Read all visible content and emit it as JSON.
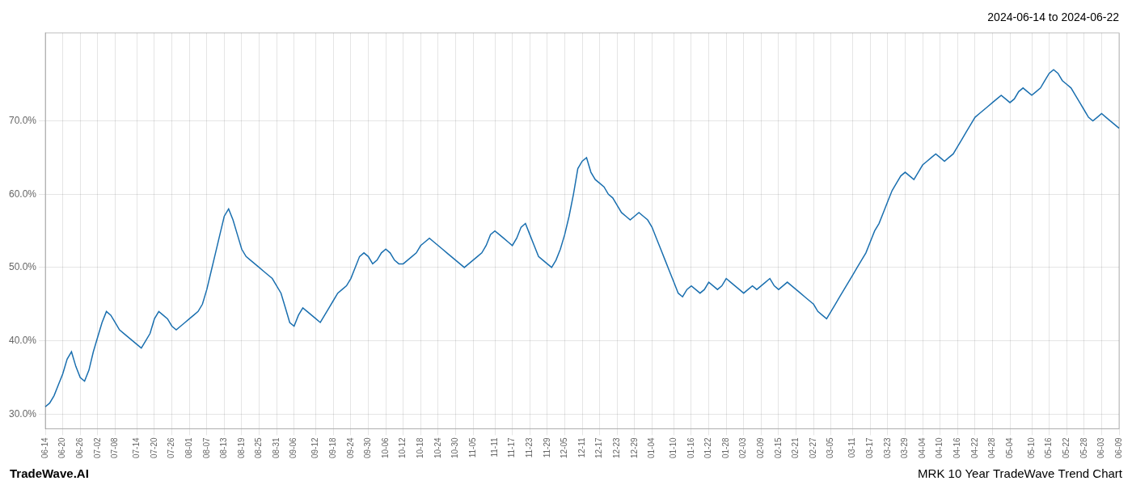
{
  "chart_data": {
    "type": "line",
    "title": "2024-06-14 to 2024-06-22",
    "annotations": [
      "TradeWave.AI",
      "MRK 10 Year TradeWave Trend Chart"
    ],
    "categories": [
      "06-14",
      null,
      null,
      null,
      "06-20",
      null,
      null,
      null,
      "06-26",
      null,
      null,
      null,
      "07-02",
      null,
      null,
      null,
      "07-08",
      null,
      null,
      null,
      null,
      "07-14",
      null,
      null,
      null,
      "07-20",
      null,
      null,
      null,
      "07-26",
      null,
      null,
      null,
      "08-01",
      null,
      null,
      null,
      "08-07",
      null,
      null,
      null,
      "08-13",
      null,
      null,
      null,
      "08-19",
      null,
      null,
      null,
      "08-25",
      null,
      null,
      null,
      "08-31",
      null,
      null,
      null,
      "09-06",
      null,
      null,
      null,
      null,
      "09-12",
      null,
      null,
      null,
      "09-18",
      null,
      null,
      null,
      "09-24",
      null,
      null,
      null,
      "09-30",
      null,
      null,
      null,
      "10-06",
      null,
      null,
      null,
      "10-12",
      null,
      null,
      null,
      "10-18",
      null,
      null,
      null,
      "10-24",
      null,
      null,
      null,
      "10-30",
      null,
      null,
      null,
      "11-05",
      null,
      null,
      null,
      null,
      "11-11",
      null,
      null,
      null,
      "11-17",
      null,
      null,
      null,
      "11-23",
      null,
      null,
      null,
      "11-29",
      null,
      null,
      null,
      "12-05",
      null,
      null,
      null,
      "12-11",
      null,
      null,
      null,
      "12-17",
      null,
      null,
      null,
      "12-23",
      null,
      null,
      null,
      "12-29",
      null,
      null,
      null,
      "01-04",
      null,
      null,
      null,
      null,
      "01-10",
      null,
      null,
      null,
      "01-16",
      null,
      null,
      null,
      "01-22",
      null,
      null,
      null,
      "01-28",
      null,
      null,
      null,
      "02-03",
      null,
      null,
      null,
      "02-09",
      null,
      null,
      null,
      "02-15",
      null,
      null,
      null,
      "02-21",
      null,
      null,
      null,
      "02-27",
      null,
      null,
      null,
      "03-05",
      null,
      null,
      null,
      null,
      "03-11",
      null,
      null,
      null,
      "03-17",
      null,
      null,
      null,
      "03-23",
      null,
      null,
      null,
      "03-29",
      null,
      null,
      null,
      "04-04",
      null,
      null,
      null,
      "04-10",
      null,
      null,
      null,
      "04-16",
      null,
      null,
      null,
      "04-22",
      null,
      null,
      null,
      "04-28",
      null,
      null,
      null,
      "05-04",
      null,
      null,
      null,
      null,
      "05-10",
      null,
      null,
      null,
      "05-16",
      null,
      null,
      null,
      "05-22",
      null,
      null,
      null,
      "05-28",
      null,
      null,
      null,
      "06-03",
      null,
      null,
      null,
      "06-09"
    ],
    "values": [
      31.0,
      31.5,
      32.5,
      34.0,
      35.5,
      37.5,
      38.5,
      36.5,
      35.0,
      34.5,
      36.0,
      38.5,
      40.5,
      42.5,
      44.0,
      43.5,
      42.5,
      41.5,
      41.0,
      40.5,
      40.0,
      39.5,
      39.0,
      40.0,
      41.0,
      43.0,
      44.0,
      43.5,
      43.0,
      42.0,
      41.5,
      42.0,
      42.5,
      43.0,
      43.5,
      44.0,
      45.0,
      47.0,
      49.5,
      52.0,
      54.5,
      57.0,
      58.0,
      56.5,
      54.5,
      52.5,
      51.5,
      51.0,
      50.5,
      50.0,
      49.5,
      49.0,
      48.5,
      47.5,
      46.5,
      44.5,
      42.5,
      42.0,
      43.5,
      44.5,
      44.0,
      43.5,
      43.0,
      42.5,
      43.5,
      44.5,
      45.5,
      46.5,
      47.0,
      47.5,
      48.5,
      50.0,
      51.5,
      52.0,
      51.5,
      50.5,
      51.0,
      52.0,
      52.5,
      52.0,
      51.0,
      50.5,
      50.5,
      51.0,
      51.5,
      52.0,
      53.0,
      53.5,
      54.0,
      53.5,
      53.0,
      52.5,
      52.0,
      51.5,
      51.0,
      50.5,
      50.0,
      50.5,
      51.0,
      51.5,
      52.0,
      53.0,
      54.5,
      55.0,
      54.5,
      54.0,
      53.5,
      53.0,
      54.0,
      55.5,
      56.0,
      54.5,
      53.0,
      51.5,
      51.0,
      50.5,
      50.0,
      51.0,
      52.5,
      54.5,
      57.0,
      60.0,
      63.5,
      64.5,
      65.0,
      63.0,
      62.0,
      61.5,
      61.0,
      60.0,
      59.5,
      58.5,
      57.5,
      57.0,
      56.5,
      57.0,
      57.5,
      57.0,
      56.5,
      55.5,
      54.0,
      52.5,
      51.0,
      49.5,
      48.0,
      46.5,
      46.0,
      47.0,
      47.5,
      47.0,
      46.5,
      47.0,
      48.0,
      47.5,
      47.0,
      47.5,
      48.5,
      48.0,
      47.5,
      47.0,
      46.5,
      47.0,
      47.5,
      47.0,
      47.5,
      48.0,
      48.5,
      47.5,
      47.0,
      47.5,
      48.0,
      47.5,
      47.0,
      46.5,
      46.0,
      45.5,
      45.0,
      44.0,
      43.5,
      43.0,
      44.0,
      45.0,
      46.0,
      47.0,
      48.0,
      49.0,
      50.0,
      51.0,
      52.0,
      53.5,
      55.0,
      56.0,
      57.5,
      59.0,
      60.5,
      61.5,
      62.5,
      63.0,
      62.5,
      62.0,
      63.0,
      64.0,
      64.5,
      65.0,
      65.5,
      65.0,
      64.5,
      65.0,
      65.5,
      66.5,
      67.5,
      68.5,
      69.5,
      70.5,
      71.0,
      71.5,
      72.0,
      72.5,
      73.0,
      73.5,
      73.0,
      72.5,
      73.0,
      74.0,
      74.5,
      74.0,
      73.5,
      74.0,
      74.5,
      75.5,
      76.5,
      77.0,
      76.5,
      75.5,
      75.0,
      74.5,
      73.5,
      72.5,
      71.5,
      70.5,
      70.0,
      70.5,
      71.0,
      70.5,
      70.0,
      69.5,
      69.0
    ],
    "color": "#1a6faf",
    "ylim": [
      28.0,
      82.0
    ],
    "yticks": [
      {
        "value": 30.0,
        "label": "30.0%"
      },
      {
        "value": 40.0,
        "label": "40.0%"
      },
      {
        "value": 50.0,
        "label": "50.0%"
      },
      {
        "value": 60.0,
        "label": "60.0%"
      },
      {
        "value": 70.0,
        "label": "70.0%"
      }
    ],
    "grid": true
  }
}
